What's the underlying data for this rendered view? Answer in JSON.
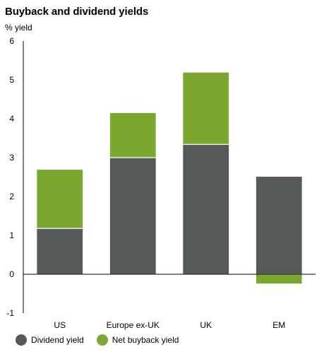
{
  "chart_data": {
    "type": "bar",
    "stacked": true,
    "title": "Buyback and dividend yields",
    "ylabel": "% yield",
    "xlabel": "",
    "categories": [
      "US",
      "Europe ex-UK",
      "UK",
      "EM"
    ],
    "series": [
      {
        "name": "Dividend yield",
        "values": [
          1.18,
          3.0,
          3.34,
          2.52
        ],
        "color": "#55595a"
      },
      {
        "name": "Net buyback yield",
        "values": [
          1.52,
          1.16,
          1.86,
          -0.25
        ],
        "color": "#7aa82f"
      }
    ],
    "ylim": [
      -1,
      6
    ],
    "yticks": [
      "-1",
      "0",
      "1",
      "2",
      "3",
      "4",
      "5",
      "6"
    ],
    "grid": false,
    "legend_position": "bottom-left"
  }
}
